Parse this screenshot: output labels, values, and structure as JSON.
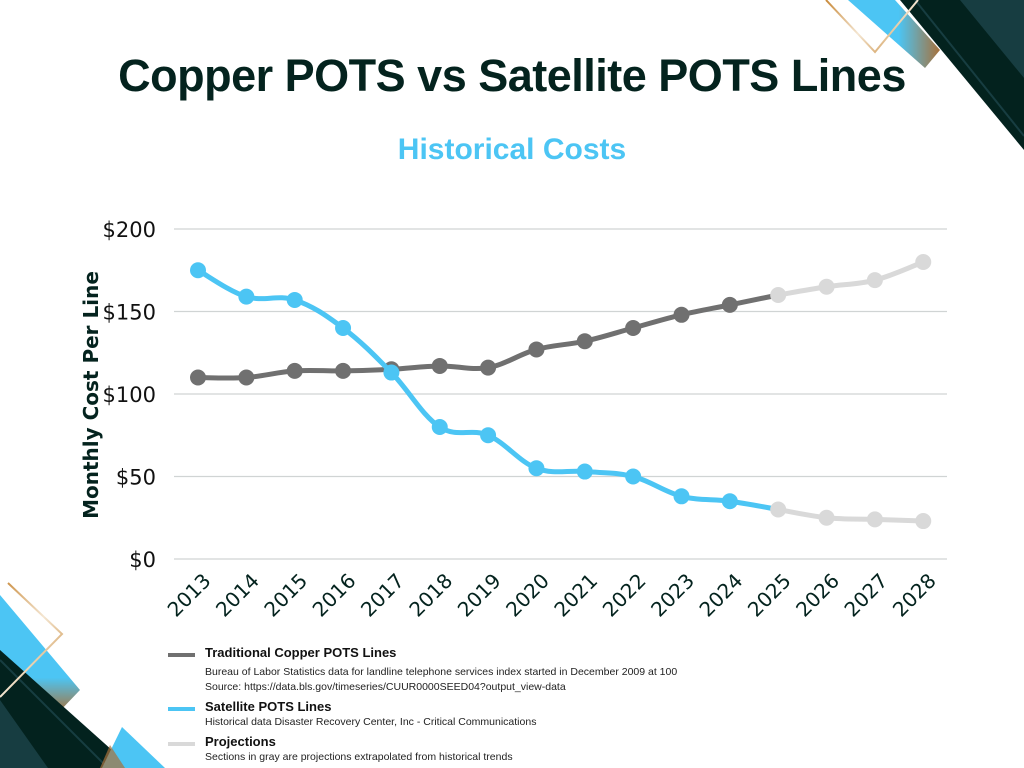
{
  "header": {
    "title": "Copper POTS vs Satellite POTS Lines",
    "subtitle": "Historical Costs"
  },
  "colors": {
    "copper": "#707070",
    "satellite": "#4cc5f4",
    "projection": "#d9d9d9",
    "title": "#04231e",
    "subtitle": "#4cc5f4",
    "deco_dark": "#03221e",
    "deco_teal": "#173d41",
    "deco_gold": "#c98a3a",
    "grid": "#d0d4d4"
  },
  "chart_data": {
    "type": "line",
    "title": "Historical Costs",
    "xlabel": "",
    "ylabel": "Monthly Cost Per Line",
    "ylim": [
      0,
      200
    ],
    "yticks": [
      0,
      50,
      100,
      150,
      200
    ],
    "ytick_labels": [
      "$0",
      "$50",
      "$100",
      "$150",
      "$200"
    ],
    "grid": true,
    "x": [
      "2013",
      "2014",
      "2015",
      "2016",
      "2017",
      "2018",
      "2019",
      "2020",
      "2021",
      "2022",
      "2023",
      "2024",
      "2025",
      "2026",
      "2027",
      "2028"
    ],
    "projection_start": "2025",
    "series": [
      {
        "name": "Traditional Copper POTS Lines",
        "values": [
          110,
          110,
          114,
          114,
          115,
          117,
          116,
          127,
          132,
          140,
          148,
          154,
          160,
          165,
          169,
          180
        ]
      },
      {
        "name": "Satellite POTS Lines",
        "values": [
          175,
          159,
          157,
          140,
          113,
          80,
          75,
          55,
          53,
          50,
          38,
          35,
          30,
          25,
          24,
          23
        ]
      }
    ],
    "legend_position": "bottom-left"
  },
  "legend": [
    {
      "title": "Traditional Copper POTS Lines",
      "desc": [
        "Bureau of Labor Statistics data for landline telephone services index started in December 2009 at 100",
        "Source: https://data.bls.gov/timeseries/CUUR0000SEED04?output_view-data"
      ]
    },
    {
      "title": "Satellite POTS Lines",
      "desc": [
        "Historical data Disaster Recovery Center, Inc - Critical Communications"
      ]
    },
    {
      "title": "Projections",
      "desc": [
        "Sections in gray are projections extrapolated from historical trends"
      ]
    }
  ]
}
